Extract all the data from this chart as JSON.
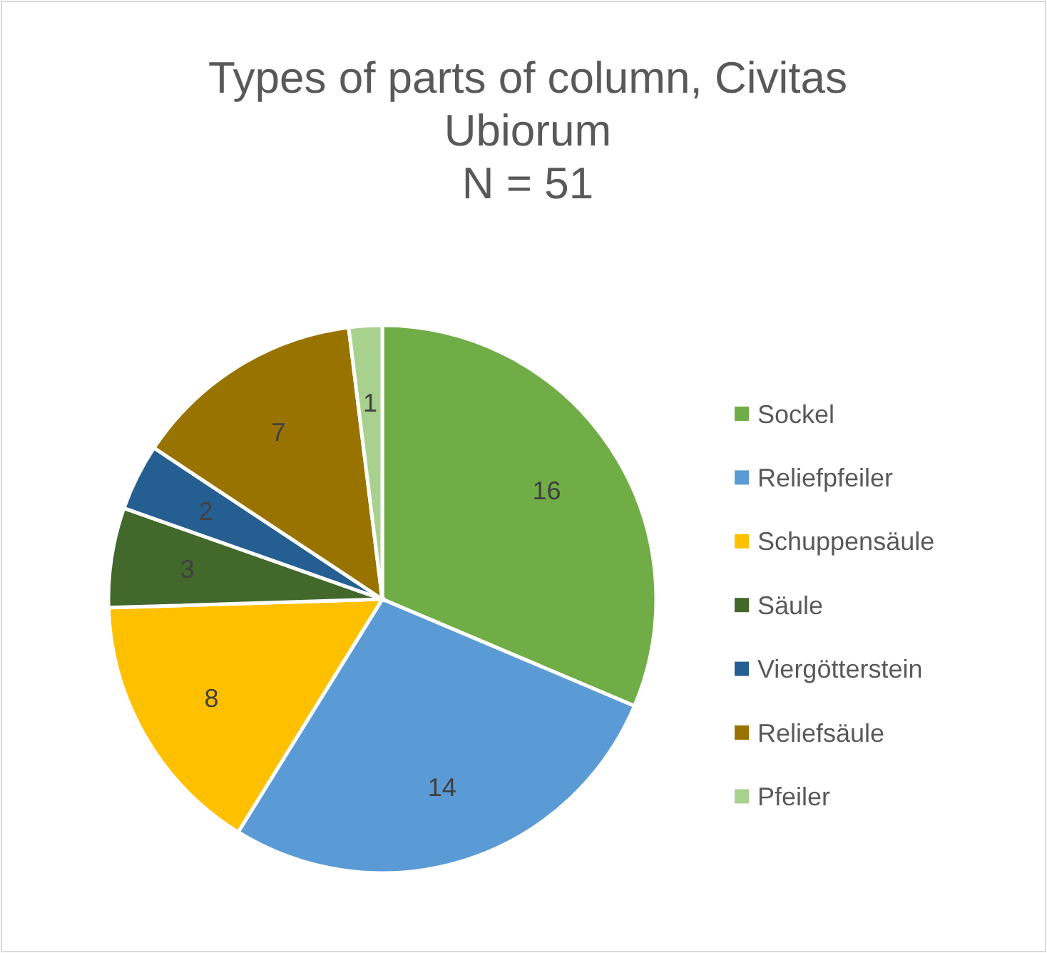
{
  "chart_data": {
    "type": "pie",
    "title": "Types of parts of column, Civitas Ubiorum",
    "subtitle": "N = 51",
    "categories": [
      "Sockel",
      "Reliefpfeiler",
      "Schuppensäule",
      "Säule",
      "Viergötterstein",
      "Reliefsäule",
      "Pfeiler"
    ],
    "values": [
      16,
      14,
      8,
      3,
      2,
      7,
      1
    ],
    "colors": [
      "#70ad47",
      "#5b9bd5",
      "#ffc000",
      "#43682b",
      "#255e91",
      "#997300",
      "#a9d18e"
    ],
    "data_labels": true,
    "legend": "right"
  }
}
